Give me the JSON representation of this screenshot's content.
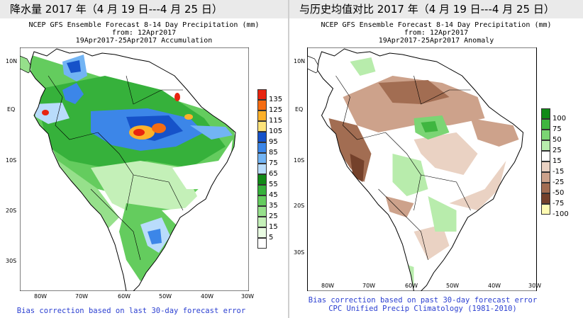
{
  "left": {
    "title": "降水量 2017 年（4 月 19 日---4 月 25 日）",
    "header1": "NCEP GFS Ensemble Forecast 8-14 Day Precipitation (mm)",
    "header2": "from: 12Apr2017",
    "header3": "19Apr2017-25Apr2017 Accumulation",
    "lat_ticks": [
      "10N",
      "EQ",
      "10S",
      "20S",
      "30S"
    ],
    "lon_ticks": [
      "80W",
      "70W",
      "60W",
      "50W",
      "40W",
      "30W"
    ],
    "footer1": "Bias correction based on last 30-day forecast error",
    "legend": [
      {
        "label": "135",
        "color": "#e8240f"
      },
      {
        "label": "125",
        "color": "#f56c12"
      },
      {
        "label": "115",
        "color": "#fdb12a"
      },
      {
        "label": "105",
        "color": "#fde37a"
      },
      {
        "label": "95",
        "color": "#1652c9"
      },
      {
        "label": "85",
        "color": "#3c86e8"
      },
      {
        "label": "75",
        "color": "#72b4f4"
      },
      {
        "label": "65",
        "color": "#b9dcfb"
      },
      {
        "label": "55",
        "color": "#118a17"
      },
      {
        "label": "45",
        "color": "#36b13b"
      },
      {
        "label": "35",
        "color": "#64cc5e"
      },
      {
        "label": "25",
        "color": "#96e08b"
      },
      {
        "label": "15",
        "color": "#c4f0b8"
      },
      {
        "label": "5",
        "color": "#e9fbe2"
      },
      {
        "label": "",
        "color": "#ffffff"
      }
    ]
  },
  "right": {
    "title": "与历史均值对比 2017 年（4 月 19 日---4 月 25 日）",
    "header1": "NCEP GFS Ensemble Forecast 8-14 Day Precipitation (mm)",
    "header2": "from: 12Apr2017",
    "header3": "19Apr2017-25Apr2017 Anomaly",
    "lat_ticks": [
      "10N",
      "EQ",
      "10S",
      "20S",
      "30S"
    ],
    "lon_ticks": [
      "80W",
      "70W",
      "60W",
      "50W",
      "40W",
      "30W"
    ],
    "footer1": "Bias correction based on past 30-day forecast error",
    "footer2": "CPC Unified Precip Climatology (1981-2010)",
    "legend": [
      {
        "label": "100",
        "color": "#108a17"
      },
      {
        "label": "75",
        "color": "#3fb640"
      },
      {
        "label": "50",
        "color": "#7bd574"
      },
      {
        "label": "25",
        "color": "#b8ecac"
      },
      {
        "label": "15",
        "color": "#ffffff"
      },
      {
        "label": "-15",
        "color": "#ead2c3"
      },
      {
        "label": "-25",
        "color": "#cda28b"
      },
      {
        "label": "-50",
        "color": "#a26d52"
      },
      {
        "label": "-75",
        "color": "#74412b"
      },
      {
        "label": "-100",
        "color": "#fffbb3"
      }
    ]
  },
  "colors": {
    "land": "#ffffff",
    "ocean": "#ffffff",
    "coast": "#000000",
    "footer_text": "#2b3fd1"
  }
}
